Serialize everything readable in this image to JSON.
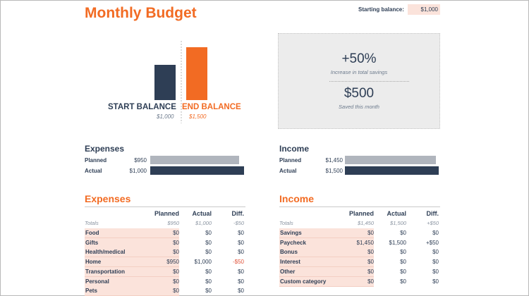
{
  "title": "Monthly Budget",
  "starting_balance": {
    "label": "Starting balance:",
    "value": "$1,000"
  },
  "chart_data": {
    "type": "bar",
    "categories": [
      "START BALANCE",
      "END BALANCE"
    ],
    "values": [
      1000,
      1500
    ],
    "value_labels": [
      "$1,000",
      "$1,500"
    ],
    "colors": [
      "#2e3e55",
      "#f26b23"
    ],
    "ylim": [
      0,
      1500
    ],
    "grid": false
  },
  "summary": {
    "percent": "+50%",
    "percent_caption": "Increase in total savings",
    "saved": "$500",
    "saved_caption": "Saved this month"
  },
  "planned_actual": {
    "expenses": {
      "heading": "Expenses",
      "planned_label": "Planned",
      "planned_value": "$950",
      "planned_fraction": 0.95,
      "actual_label": "Actual",
      "actual_value": "$1,000",
      "actual_fraction": 1.0
    },
    "income": {
      "heading": "Income",
      "planned_label": "Planned",
      "planned_value": "$1,450",
      "planned_fraction": 0.967,
      "actual_label": "Actual",
      "actual_value": "$1,500",
      "actual_fraction": 1.0
    }
  },
  "expenses_table": {
    "title": "Expenses",
    "headers": [
      "",
      "Planned",
      "Actual",
      "Diff."
    ],
    "totals": [
      "Totals",
      "$950",
      "$1,000",
      "-$50"
    ],
    "rows": [
      [
        "Food",
        "$0",
        "$0",
        "$0"
      ],
      [
        "Gifts",
        "$0",
        "$0",
        "$0"
      ],
      [
        "Health/medical",
        "$0",
        "$0",
        "$0"
      ],
      [
        "Home",
        "$950",
        "$1,000",
        "-$50"
      ],
      [
        "Transportation",
        "$0",
        "$0",
        "$0"
      ],
      [
        "Personal",
        "$0",
        "$0",
        "$0"
      ],
      [
        "Pets",
        "$0",
        "$0",
        "$0"
      ]
    ]
  },
  "income_table": {
    "title": "Income",
    "headers": [
      "",
      "Planned",
      "Actual",
      "Diff."
    ],
    "totals": [
      "Totals",
      "$1,450",
      "$1,500",
      "+$50"
    ],
    "rows": [
      [
        "Savings",
        "$0",
        "$0",
        "$0"
      ],
      [
        "Paycheck",
        "$1,450",
        "$1,500",
        "+$50"
      ],
      [
        "Bonus",
        "$0",
        "$0",
        "$0"
      ],
      [
        "Interest",
        "$0",
        "$0",
        "$0"
      ],
      [
        "Other",
        "$0",
        "$0",
        "$0"
      ],
      [
        "Custom category",
        "$0",
        "$0",
        "$0"
      ]
    ]
  }
}
